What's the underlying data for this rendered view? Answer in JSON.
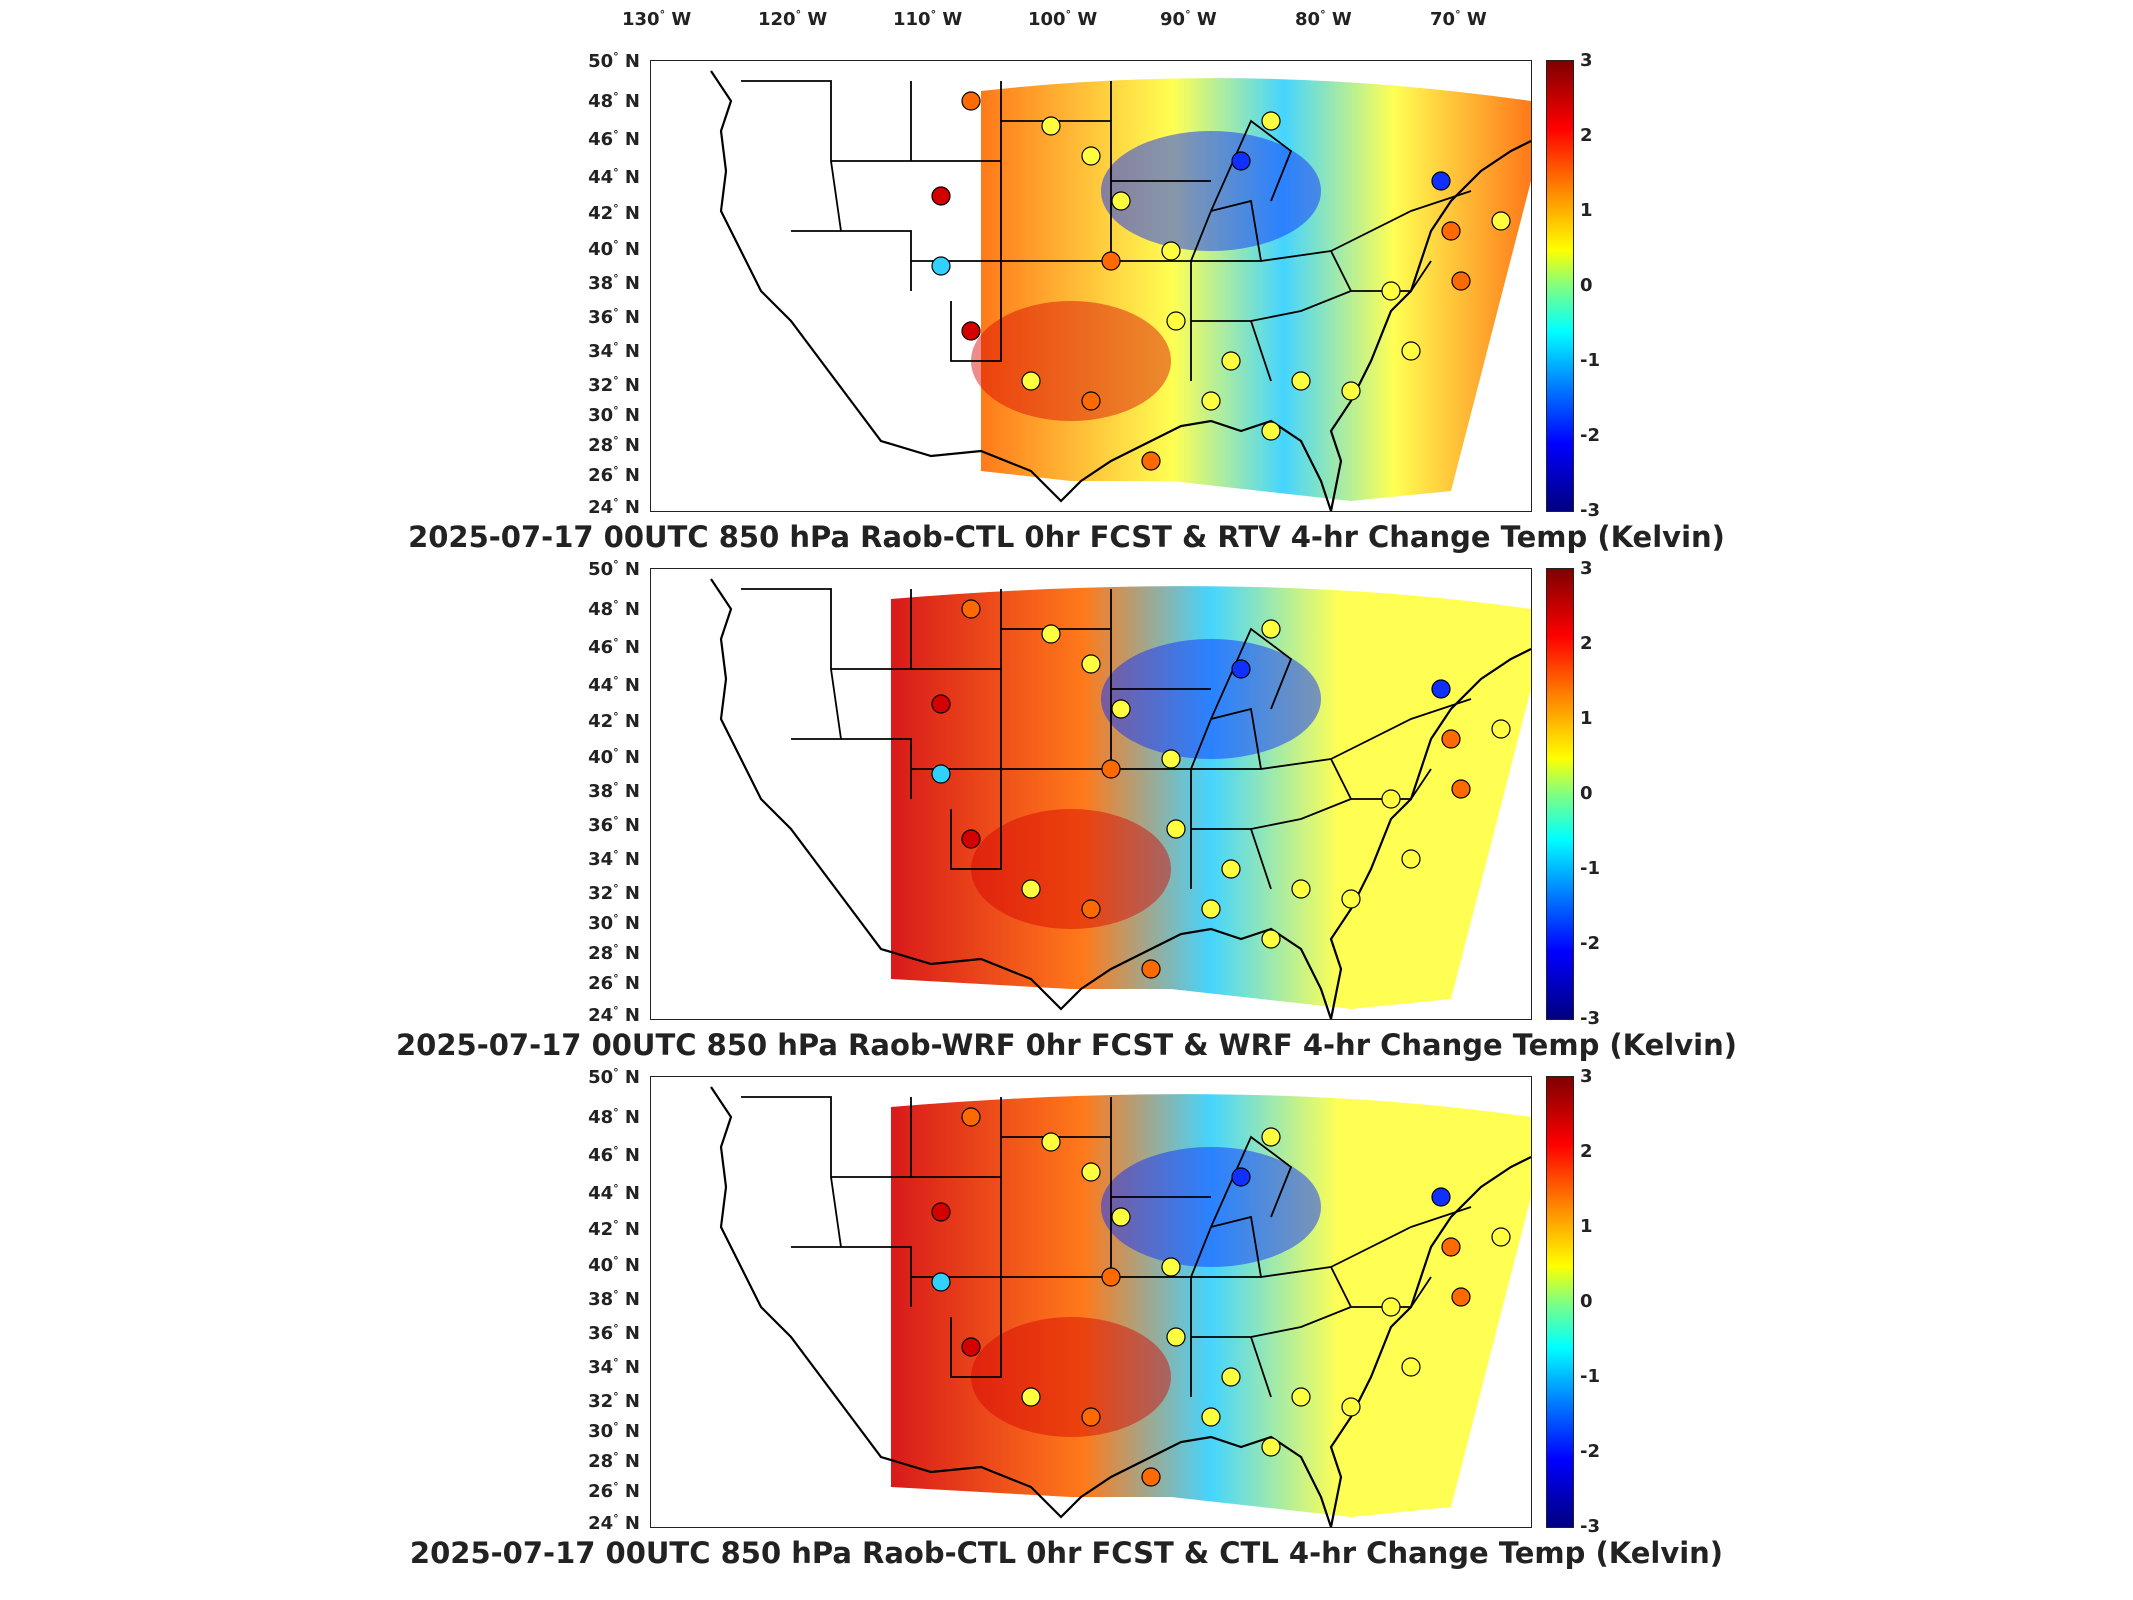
{
  "longitude_labels": [
    "130",
    "120",
    "110",
    "100",
    "90",
    "80",
    "70"
  ],
  "longitude_suffix": "W",
  "latitude_labels": [
    "50",
    "48",
    "46",
    "44",
    "42",
    "40",
    "38",
    "36",
    "34",
    "32",
    "30",
    "28",
    "26",
    "24"
  ],
  "latitude_suffix": "N",
  "colorbar_ticks": [
    "3",
    "2",
    "1",
    "0",
    "-1",
    "-2",
    "-3"
  ],
  "colorbar_range": [
    -3,
    3
  ],
  "colors": {
    "warm": "#ff6a00",
    "hot": "#d40000",
    "neutral": "#ffff40",
    "cool": "#30d0ff",
    "cold": "#1030ff",
    "coast": "#000000"
  },
  "panels": [
    {
      "title": "2025-07-17 00UTC 850 hPa Raob-CTL 0hr FCST & RTV 4-hr Change Temp (Kelvin)"
    },
    {
      "title": "2025-07-17 00UTC 850 hPa Raob-WRF 0hr FCST & WRF 4-hr Change Temp (Kelvin)"
    },
    {
      "title": "2025-07-17 00UTC 850 hPa Raob-CTL 0hr FCST & CTL 4-hr Change Temp (Kelvin)"
    }
  ]
}
